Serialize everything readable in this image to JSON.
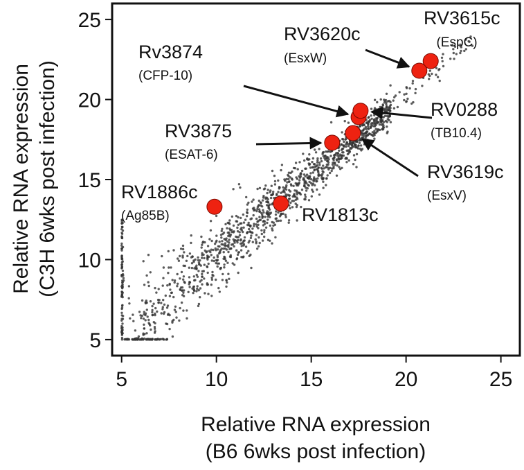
{
  "chart_data": {
    "type": "scatter",
    "title": "",
    "xlabel": [
      "Relative RNA expression",
      "(B6 6wks post infection)"
    ],
    "ylabel": [
      "Relative RNA expression",
      "(C3H 6wks post infection)"
    ],
    "xlim": [
      4.5,
      26
    ],
    "ylim": [
      4,
      26
    ],
    "xticks": [
      5,
      10,
      15,
      20,
      25
    ],
    "yticks": [
      5,
      10,
      15,
      20,
      25
    ],
    "grid": false,
    "legend": "none",
    "point_color": "#333333",
    "highlight_color": "#ee2211",
    "background_points": {
      "description_source": "approximate distribution read from the plotted cloud",
      "count": 1500,
      "trend": {
        "slope": 1.0,
        "intercept": 0.25
      }
    },
    "highlighted_genes": [
      {
        "gene": "RV3615c",
        "protein": "(EspC)",
        "x": 21.3,
        "y": 22.4
      },
      {
        "gene": "RV3620c",
        "protein": "(EsxW)",
        "x": 20.7,
        "y": 21.8
      },
      {
        "gene": "Rv3874",
        "protein": "(CFP-10)",
        "x": 17.5,
        "y": 18.9
      },
      {
        "gene": "RV0288",
        "protein": "(TB10.4)",
        "x": 17.6,
        "y": 19.3
      },
      {
        "gene": "RV3875",
        "protein": "(ESAT-6)",
        "x": 16.1,
        "y": 17.3
      },
      {
        "gene": "RV3619c",
        "protein": "(EsxV)",
        "x": 17.2,
        "y": 17.9
      },
      {
        "gene": "RV1886c",
        "protein": "(Ag85B)",
        "x": 9.9,
        "y": 13.3
      },
      {
        "gene": "RV1813c",
        "protein": "",
        "x": 13.4,
        "y": 13.5
      }
    ]
  }
}
